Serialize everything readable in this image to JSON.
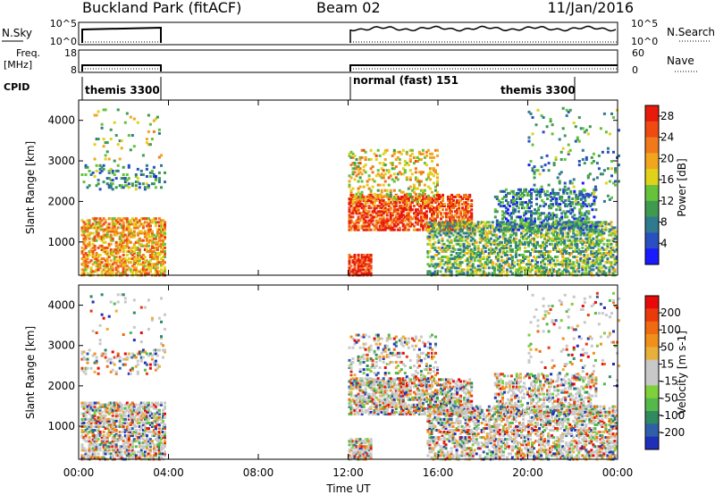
{
  "header": {
    "title": "Buckland Park (fitACF)",
    "beam": "Beam 02",
    "date": "11/Jan/2016"
  },
  "top_panels": {
    "nsky": {
      "label": "N.Sky",
      "ticks": [
        "10^5",
        "10^0"
      ],
      "right_label": "N.Search",
      "right_ticks": [
        "10^5",
        "10^0"
      ]
    },
    "freq": {
      "label_line1": "Freq.",
      "label_line2": "[MHz]",
      "ticks": [
        "18",
        "8"
      ],
      "right_label": "Nave",
      "right_ticks": [
        "60",
        "0"
      ]
    },
    "cpid": {
      "label": "CPID",
      "segments": [
        "themis 3300",
        "normal (fast) 151",
        "themis 3300"
      ]
    }
  },
  "time_axis": {
    "label": "Time UT",
    "ticks": [
      "00:00",
      "04:00",
      "08:00",
      "12:00",
      "16:00",
      "20:00",
      "00:00"
    ]
  },
  "chart_data": [
    {
      "type": "heatmap",
      "title": "",
      "ylabel": "Slant Range [km]",
      "yticks": [
        "1000",
        "2000",
        "3000",
        "4000"
      ],
      "ylim": [
        180,
        4500
      ],
      "xlim_hours": [
        0,
        24
      ],
      "data_gap_hours": [
        3.9,
        12.0
      ],
      "colorbar": {
        "label": "Power [dB]",
        "ticks": [
          "4",
          "8",
          "12",
          "16",
          "20",
          "24",
          "28"
        ],
        "colors": [
          "#1a1aff",
          "#2a4fc0",
          "#2f7a8f",
          "#3f9a4f",
          "#66c23a",
          "#e0d21a",
          "#f2a61e",
          "#f07a1a",
          "#ee4a12",
          "#e81a0c"
        ]
      }
    },
    {
      "type": "heatmap",
      "title": "",
      "ylabel": "Slant Range [km]",
      "yticks": [
        "1000",
        "2000",
        "3000",
        "4000"
      ],
      "ylim": [
        180,
        4500
      ],
      "xlim_hours": [
        0,
        24
      ],
      "data_gap_hours": [
        3.9,
        12.0
      ],
      "colorbar": {
        "label": "Velocity [m s-1]",
        "ticks": [
          "200",
          "100",
          "50",
          "15",
          "-15",
          "-50",
          "-100",
          "-200"
        ],
        "colors": [
          "#1f2fb8",
          "#2f5fa8",
          "#2f8a5f",
          "#55b84a",
          "#7fd03a",
          "#c8c8c8",
          "#c8c8c8",
          "#e8b03a",
          "#f0901a",
          "#f06a12",
          "#ea3a0c",
          "#e80a0a"
        ]
      }
    }
  ]
}
